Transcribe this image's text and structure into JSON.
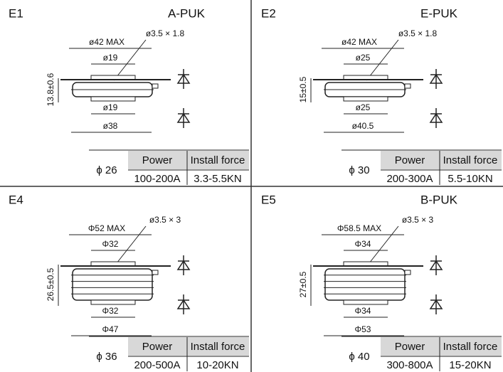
{
  "table_headers": [
    "Power",
    "Install force"
  ],
  "panels": [
    {
      "code": "E1",
      "package": "A-PUK",
      "hole": "ø3.5 × 1.8",
      "max": "ø42 MAX",
      "top": "ø19",
      "height": "13.8±0.6",
      "bottom": "ø19",
      "base": "ø38",
      "size": "ϕ 26",
      "power": "100-200A",
      "force": "3.3-5.5KN"
    },
    {
      "code": "E2",
      "package": "E-PUK",
      "hole": "ø3.5 × 1.8",
      "max": "ø42 MAX",
      "top": "ø25",
      "height": "15±0.5",
      "bottom": "ø25",
      "base": "ø40.5",
      "size": "ϕ 30",
      "power": "200-300A",
      "force": "5.5-10KN"
    },
    {
      "code": "E4",
      "hole": "ø3.5 × 3",
      "max": "Φ52 MAX",
      "top": "Φ32",
      "height": "26.5±0.5",
      "bottom": "Φ32",
      "base": "Φ47",
      "size": "ϕ 36",
      "power": "200-500A",
      "force": "10-20KN"
    },
    {
      "code": "E5",
      "package": "B-PUK",
      "hole": "ø3.5 × 3",
      "max": "Φ58.5 MAX",
      "top": "Φ34",
      "height": "27±0.5",
      "bottom": "Φ34",
      "base": "Φ53",
      "size": "ϕ 40",
      "power": "300-800A",
      "force": "15-20KN"
    }
  ]
}
